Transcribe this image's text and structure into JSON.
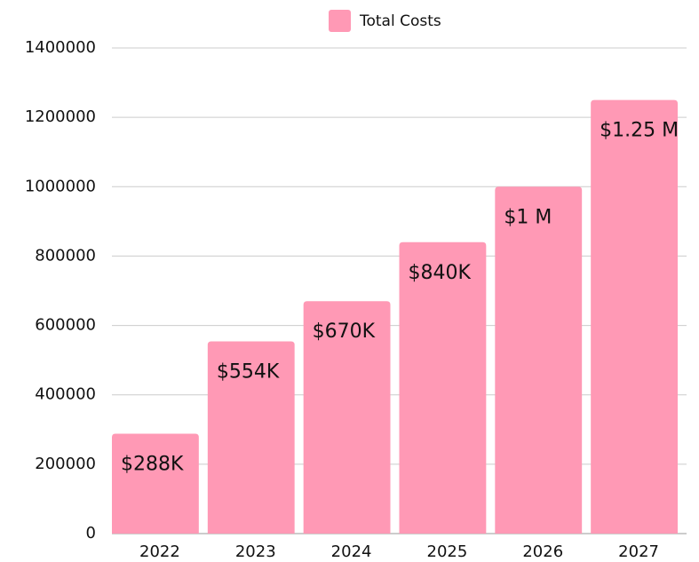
{
  "chart_data": {
    "type": "bar",
    "categories": [
      "2022",
      "2023",
      "2024",
      "2025",
      "2026",
      "2027"
    ],
    "series": [
      {
        "name": "Total Costs",
        "color": "#ff99b5",
        "values": [
          288000,
          554000,
          670000,
          840000,
          1000000,
          1250000
        ],
        "value_labels": [
          "$288K",
          "$554K",
          "$670K",
          "$840K",
          "$1 M",
          "$1.25 M"
        ]
      }
    ],
    "ylim": [
      0,
      1400000
    ],
    "yticks": [
      0,
      200000,
      400000,
      600000,
      800000,
      1000000,
      1200000,
      1400000
    ],
    "grid": true,
    "legend": "top"
  }
}
